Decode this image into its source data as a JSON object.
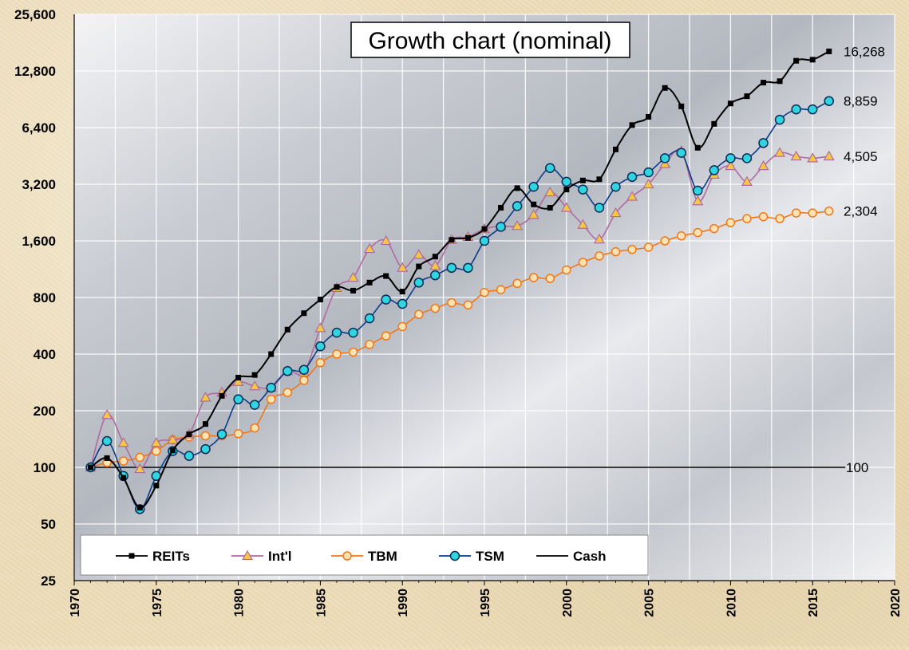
{
  "chart_data": {
    "type": "line",
    "title": "Growth chart (nominal)",
    "xlabel": "",
    "ylabel": "",
    "y_scale": "log2",
    "xlim": [
      1970,
      2020
    ],
    "ylim": [
      25,
      25600
    ],
    "x_ticks": [
      "1970",
      "1975",
      "1980",
      "1985",
      "1990",
      "1995",
      "2000",
      "2005",
      "2010",
      "2015",
      "2020"
    ],
    "y_ticks": [
      "25,600",
      "12,800",
      "6,400",
      "3,200",
      "1,600",
      "800",
      "400",
      "200",
      "100",
      "50",
      "25"
    ],
    "x": [
      1971,
      1972,
      1973,
      1974,
      1975,
      1976,
      1977,
      1978,
      1979,
      1980,
      1981,
      1982,
      1983,
      1984,
      1985,
      1986,
      1987,
      1988,
      1989,
      1990,
      1991,
      1992,
      1993,
      1994,
      1995,
      1996,
      1997,
      1998,
      1999,
      2000,
      2001,
      2002,
      2003,
      2004,
      2005,
      2006,
      2007,
      2008,
      2009,
      2010,
      2011,
      2012,
      2013,
      2014,
      2015,
      2016
    ],
    "legend_position": "bottom-left",
    "grid": true,
    "series": [
      {
        "name": "REITs",
        "color": "#000000",
        "marker": "square",
        "end_label": "16,268",
        "values": [
          100,
          112,
          88,
          61,
          80,
          123,
          150,
          170,
          240,
          300,
          310,
          400,
          540,
          660,
          780,
          910,
          870,
          960,
          1040,
          860,
          1170,
          1320,
          1620,
          1660,
          1850,
          2400,
          3050,
          2500,
          2400,
          3000,
          3350,
          3400,
          4900,
          6600,
          7300,
          10400,
          8300,
          5000,
          6700,
          8600,
          9400,
          11100,
          11300,
          14500,
          14700,
          16268
        ]
      },
      {
        "name": "Int'l",
        "color": "#b06aa0",
        "marker": "triangle",
        "end_label": "4,505",
        "values": [
          100,
          190,
          135,
          98,
          135,
          140,
          150,
          235,
          250,
          285,
          270,
          265,
          325,
          320,
          550,
          900,
          1020,
          1450,
          1600,
          1150,
          1350,
          1180,
          1620,
          1680,
          1850,
          1920,
          1920,
          2200,
          2900,
          2400,
          1950,
          1630,
          2250,
          2750,
          3200,
          4100,
          4800,
          2600,
          3600,
          4000,
          3300,
          4000,
          4700,
          4500,
          4400,
          4505
        ]
      },
      {
        "name": "TBM",
        "color": "#f07818",
        "marker": "circle",
        "end_label": "2,304",
        "values": [
          100,
          106,
          108,
          113,
          122,
          140,
          145,
          147,
          147,
          151,
          162,
          230,
          250,
          290,
          360,
          400,
          410,
          450,
          500,
          560,
          650,
          700,
          750,
          730,
          850,
          880,
          950,
          1020,
          1010,
          1120,
          1230,
          1330,
          1400,
          1440,
          1480,
          1600,
          1700,
          1770,
          1860,
          2000,
          2100,
          2150,
          2100,
          2250,
          2250,
          2304
        ]
      },
      {
        "name": "TSM",
        "color": "#0a3c8c",
        "marker": "circle-cyan",
        "end_label": "8,859",
        "values": [
          100,
          138,
          90,
          60,
          90,
          122,
          115,
          125,
          150,
          230,
          215,
          265,
          325,
          330,
          440,
          520,
          520,
          620,
          780,
          740,
          960,
          1050,
          1150,
          1150,
          1600,
          1900,
          2450,
          3100,
          3900,
          3300,
          3000,
          2400,
          3100,
          3500,
          3700,
          4400,
          4700,
          2960,
          3800,
          4400,
          4400,
          5300,
          7050,
          8000,
          8000,
          8859
        ]
      },
      {
        "name": "Cash",
        "color": "#000000",
        "marker": "none",
        "end_label": "100",
        "values": [
          100,
          100,
          100,
          100,
          100,
          100,
          100,
          100,
          100,
          100,
          100,
          100,
          100,
          100,
          100,
          100,
          100,
          100,
          100,
          100,
          100,
          100,
          100,
          100,
          100,
          100,
          100,
          100,
          100,
          100,
          100,
          100,
          100,
          100,
          100,
          100,
          100,
          100,
          100,
          100,
          100,
          100,
          100,
          100,
          100,
          100
        ]
      }
    ]
  }
}
